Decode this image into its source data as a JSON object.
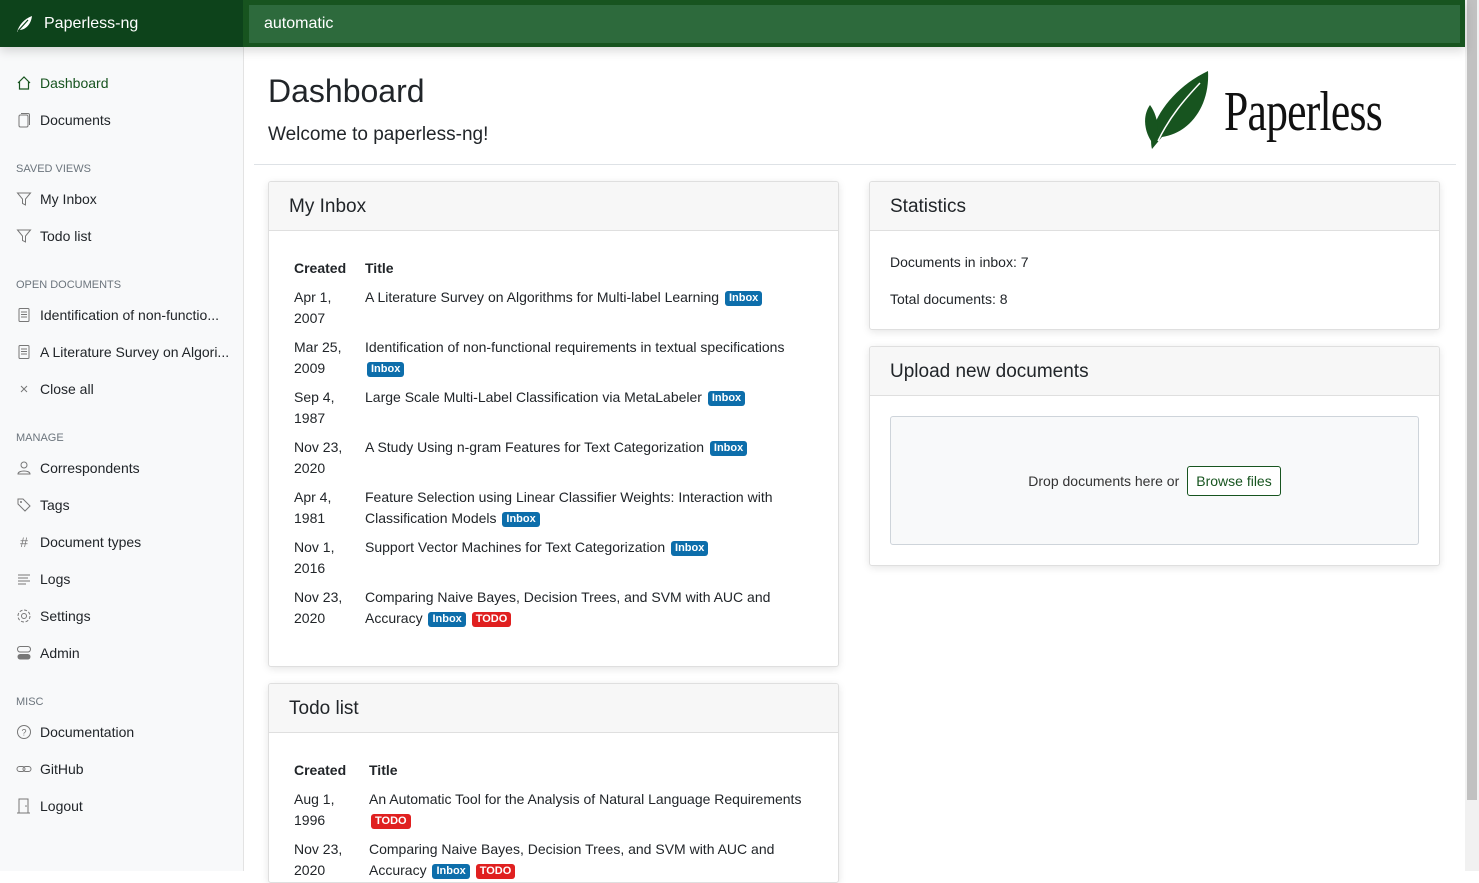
{
  "app": {
    "name": "Paperless-ng",
    "search_value": "automatic"
  },
  "colors": {
    "primary": "#17541f",
    "inbox_badge": "#0d6eab",
    "todo_badge": "#e02020"
  },
  "sidebar": {
    "main": [
      {
        "label": "Dashboard",
        "icon": "house-icon",
        "active": true
      },
      {
        "label": "Documents",
        "icon": "files-icon"
      }
    ],
    "saved_views_title": "SAVED VIEWS",
    "saved_views": [
      {
        "label": "My Inbox",
        "icon": "funnel-icon"
      },
      {
        "label": "Todo list",
        "icon": "funnel-icon"
      }
    ],
    "open_documents_title": "OPEN DOCUMENTS",
    "open_documents": [
      {
        "label": "Identification of non-functio..."
      },
      {
        "label": "A Literature Survey on Algori..."
      },
      {
        "label": "Close all"
      }
    ],
    "manage_title": "MANAGE",
    "manage": [
      {
        "label": "Correspondents"
      },
      {
        "label": "Tags"
      },
      {
        "label": "Document types"
      },
      {
        "label": "Logs"
      },
      {
        "label": "Settings"
      },
      {
        "label": "Admin"
      }
    ],
    "misc_title": "MISC",
    "misc": [
      {
        "label": "Documentation"
      },
      {
        "label": "GitHub"
      },
      {
        "label": "Logout"
      }
    ]
  },
  "page": {
    "title": "Dashboard",
    "welcome": "Welcome to paperless-ng!",
    "logo_text": "Paperless"
  },
  "inbox": {
    "title": "My Inbox",
    "col_created": "Created",
    "col_title": "Title",
    "rows": [
      {
        "d1": "Apr 1,",
        "d2": "2007",
        "title": "A Literature Survey on Algorithms for Multi-label Learning",
        "tags": [
          "Inbox"
        ]
      },
      {
        "d1": "Mar 25,",
        "d2": "2009",
        "title": "Identification of non-functional requirements in textual specifications",
        "tags": [
          "Inbox"
        ]
      },
      {
        "d1": "Sep 4,",
        "d2": "1987",
        "title": "Large Scale Multi-Label Classification via MetaLabeler",
        "tags": [
          "Inbox"
        ]
      },
      {
        "d1": "Nov 23,",
        "d2": "2020",
        "title": "A Study Using n-gram Features for Text Categorization",
        "tags": [
          "Inbox"
        ]
      },
      {
        "d1": "Apr 4,",
        "d2": "1981",
        "title": "Feature Selection using Linear Classifier Weights: Interaction with Classification Models",
        "tags": [
          "Inbox"
        ]
      },
      {
        "d1": "Nov 1,",
        "d2": "2016",
        "title": "Support Vector Machines for Text Categorization",
        "tags": [
          "Inbox"
        ]
      },
      {
        "d1": "Nov 23,",
        "d2": "2020",
        "title": "Comparing Naive Bayes, Decision Trees, and SVM with AUC and Accuracy",
        "tags": [
          "Inbox",
          "TODO"
        ]
      }
    ]
  },
  "todo": {
    "title": "Todo list",
    "col_created": "Created",
    "col_title": "Title",
    "rows": [
      {
        "d1": "Aug 1,",
        "d2": "1996",
        "title": "An Automatic Tool for the Analysis of Natural Language Requirements",
        "tags": [
          "TODO"
        ]
      },
      {
        "d1": "Nov 23,",
        "d2": "2020",
        "title": "Comparing Naive Bayes, Decision Trees, and SVM with AUC and Accuracy",
        "tags": [
          "Inbox",
          "TODO"
        ]
      }
    ]
  },
  "statistics": {
    "title": "Statistics",
    "inbox": "Documents in inbox: 7",
    "total": "Total documents: 8"
  },
  "upload": {
    "title": "Upload new documents",
    "drop_text": "Drop documents here or",
    "browse_label": "Browse files"
  }
}
